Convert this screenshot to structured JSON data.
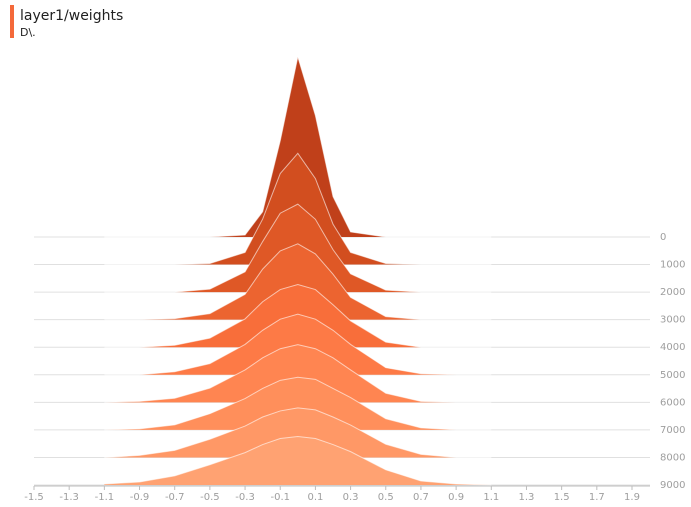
{
  "chart_data": {
    "type": "ridge",
    "title": "layer1/weights",
    "subtitle": "D\\.",
    "x": [
      -1.1,
      -0.9,
      -0.7,
      -0.5,
      -0.3,
      -0.2,
      -0.1,
      0,
      0.1,
      0.2,
      0.3,
      0.5,
      0.7,
      0.9,
      1.1
    ],
    "xlim": [
      -1.5,
      1.9
    ],
    "xticks": [
      -1.5,
      -1.3,
      -1.1,
      -0.9,
      -0.7,
      -0.5,
      -0.3,
      -0.1,
      0.1,
      0.3,
      0.5,
      0.7,
      0.9,
      1.1,
      1.3,
      1.5,
      1.7,
      1.9
    ],
    "ylim": [
      0,
      9000
    ],
    "yticks": [
      0,
      1000,
      2000,
      3000,
      4000,
      5000,
      6000,
      7000,
      8000,
      9000
    ],
    "series": [
      {
        "step": 0,
        "color": "#c0401a",
        "values": [
          0,
          0,
          0,
          0,
          2,
          25,
          95,
          178,
          120,
          40,
          5,
          0,
          0,
          0,
          0
        ]
      },
      {
        "step": 1000,
        "color": "#d24e1f",
        "values": [
          0,
          0,
          0,
          1,
          12,
          45,
          90,
          110,
          85,
          40,
          12,
          1,
          0,
          0,
          0
        ]
      },
      {
        "step": 2000,
        "color": "#df5826",
        "values": [
          0,
          0,
          0,
          3,
          20,
          50,
          78,
          87,
          72,
          42,
          18,
          2,
          0,
          0,
          0
        ]
      },
      {
        "step": 3000,
        "color": "#ec6430",
        "values": [
          0,
          0,
          1,
          6,
          25,
          50,
          68,
          75,
          65,
          45,
          22,
          3,
          0,
          0,
          0
        ]
      },
      {
        "step": 4000,
        "color": "#f86e3a",
        "values": [
          0,
          0,
          2,
          9,
          28,
          45,
          57,
          62,
          57,
          42,
          26,
          5,
          0,
          0,
          0
        ]
      },
      {
        "step": 5000,
        "color": "#fd7a46",
        "values": [
          0,
          0,
          3,
          11,
          30,
          44,
          55,
          60,
          55,
          44,
          30,
          7,
          1,
          0,
          0
        ]
      },
      {
        "step": 6000,
        "color": "#ff8551",
        "values": [
          0,
          1,
          4,
          14,
          32,
          44,
          53,
          57,
          53,
          44,
          32,
          9,
          1,
          0,
          0
        ]
      },
      {
        "step": 7000,
        "color": "#ff8f5b",
        "values": [
          0,
          1,
          5,
          16,
          31,
          41,
          49,
          52,
          50,
          41,
          32,
          11,
          2,
          0,
          0
        ]
      },
      {
        "step": 8000,
        "color": "#ff9866",
        "values": [
          0,
          2,
          7,
          18,
          31,
          40,
          46,
          49,
          47,
          40,
          32,
          13,
          3,
          0,
          0
        ]
      },
      {
        "step": 9000,
        "color": "#ffa272",
        "values": [
          1,
          3,
          9,
          20,
          32,
          40,
          46,
          48,
          46,
          40,
          33,
          15,
          4,
          1,
          0
        ]
      }
    ]
  }
}
